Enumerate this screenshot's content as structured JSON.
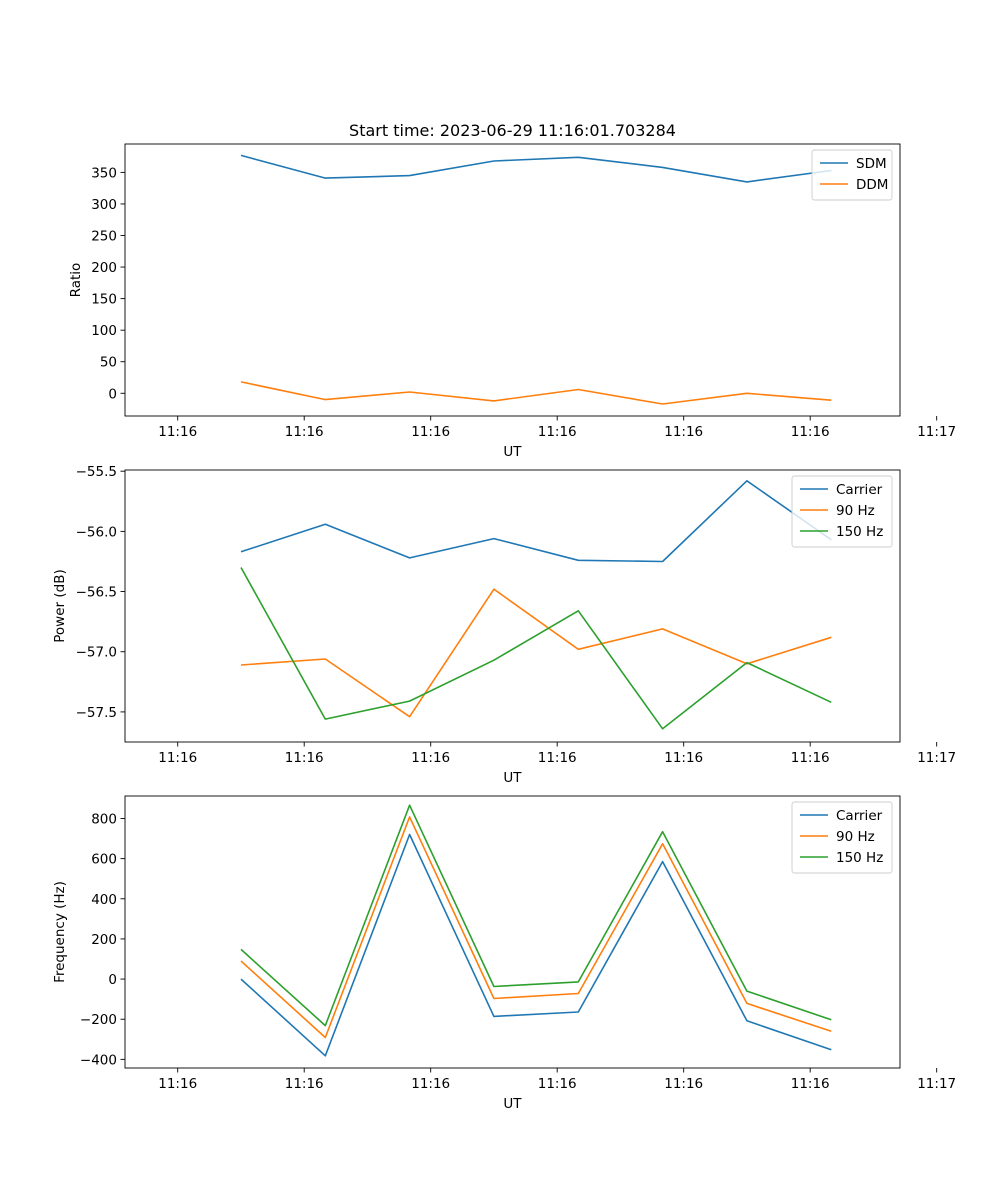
{
  "chart_data": [
    {
      "type": "line",
      "title": "Start time: 2023-06-29 11:16:01.703284",
      "xlabel": "UT",
      "ylabel": "Ratio",
      "x_tick_labels": [
        "11:16",
        "11:16",
        "11:16",
        "11:16",
        "11:16",
        "11:16",
        "11:17"
      ],
      "y_ticks": [
        0,
        50,
        100,
        150,
        200,
        250,
        300,
        350
      ],
      "y_tick_labels": [
        "0",
        "50",
        "100",
        "150",
        "200",
        "250",
        "300",
        "350"
      ],
      "ylim": [
        -36,
        395
      ],
      "x_range": [
        -0.125,
        1.713
      ],
      "x_tick_values": [
        0,
        0.3,
        0.6,
        0.9,
        1.2,
        1.5,
        1.8
      ],
      "x": [
        0.15,
        0.35,
        0.55,
        0.75,
        0.95,
        1.15,
        1.35,
        1.55
      ],
      "grid": false,
      "legend_position": "upper right",
      "series": [
        {
          "name": "SDM",
          "color": "#1f77b4",
          "values": [
            377,
            341,
            345,
            368,
            374,
            358,
            335,
            353
          ]
        },
        {
          "name": "DDM",
          "color": "#ff7f0e",
          "values": [
            18,
            -10,
            2,
            -12,
            6,
            -17,
            0,
            -11
          ]
        }
      ]
    },
    {
      "type": "line",
      "title": "",
      "xlabel": "UT",
      "ylabel": "Power (dB)",
      "x_tick_labels": [
        "11:16",
        "11:16",
        "11:16",
        "11:16",
        "11:16",
        "11:16",
        "11:17"
      ],
      "y_ticks": [
        -57.5,
        -57.0,
        -56.5,
        -56.0,
        -55.5
      ],
      "y_tick_labels": [
        "−57.5",
        "−57.0",
        "−56.5",
        "−56.0",
        "−55.5"
      ],
      "ylim": [
        -57.75,
        -55.49
      ],
      "x_range": [
        -0.125,
        1.713
      ],
      "x_tick_values": [
        0,
        0.3,
        0.6,
        0.9,
        1.2,
        1.5,
        1.8
      ],
      "x": [
        0.15,
        0.35,
        0.55,
        0.75,
        0.95,
        1.15,
        1.35,
        1.55
      ],
      "grid": false,
      "legend_position": "upper right",
      "series": [
        {
          "name": "Carrier",
          "color": "#1f77b4",
          "values": [
            -56.17,
            -55.94,
            -56.22,
            -56.06,
            -56.24,
            -56.25,
            -55.58,
            -56.07
          ]
        },
        {
          "name": "90 Hz",
          "color": "#ff7f0e",
          "values": [
            -57.11,
            -57.06,
            -57.54,
            -56.48,
            -56.98,
            -56.81,
            -57.1,
            -56.88
          ]
        },
        {
          "name": "150 Hz",
          "color": "#2ca02c",
          "values": [
            -56.3,
            -57.56,
            -57.41,
            -57.07,
            -56.66,
            -57.64,
            -57.09,
            -57.42
          ]
        }
      ]
    },
    {
      "type": "line",
      "title": "",
      "xlabel": "UT",
      "ylabel": "Frequency (Hz)",
      "x_tick_labels": [
        "11:16",
        "11:16",
        "11:16",
        "11:16",
        "11:16",
        "11:16",
        "11:17"
      ],
      "y_ticks": [
        -400,
        -200,
        0,
        200,
        400,
        600,
        800
      ],
      "y_tick_labels": [
        "−400",
        "−200",
        "0",
        "200",
        "400",
        "600",
        "800"
      ],
      "ylim": [
        -443,
        912
      ],
      "x_range": [
        -0.125,
        1.713
      ],
      "x_tick_values": [
        0,
        0.3,
        0.6,
        0.9,
        1.2,
        1.5,
        1.8
      ],
      "x": [
        0.15,
        0.35,
        0.55,
        0.75,
        0.95,
        1.15,
        1.35,
        1.55
      ],
      "grid": false,
      "legend_position": "upper right",
      "series": [
        {
          "name": "Carrier",
          "color": "#1f77b4",
          "values": [
            0,
            -382,
            720,
            -186,
            -164,
            585,
            -208,
            -352
          ]
        },
        {
          "name": "90 Hz",
          "color": "#ff7f0e",
          "values": [
            90,
            -291,
            808,
            -97,
            -72,
            674,
            -121,
            -260
          ]
        },
        {
          "name": "150 Hz",
          "color": "#2ca02c",
          "values": [
            148,
            -232,
            866,
            -37,
            -14,
            734,
            -60,
            -203
          ]
        }
      ]
    }
  ]
}
